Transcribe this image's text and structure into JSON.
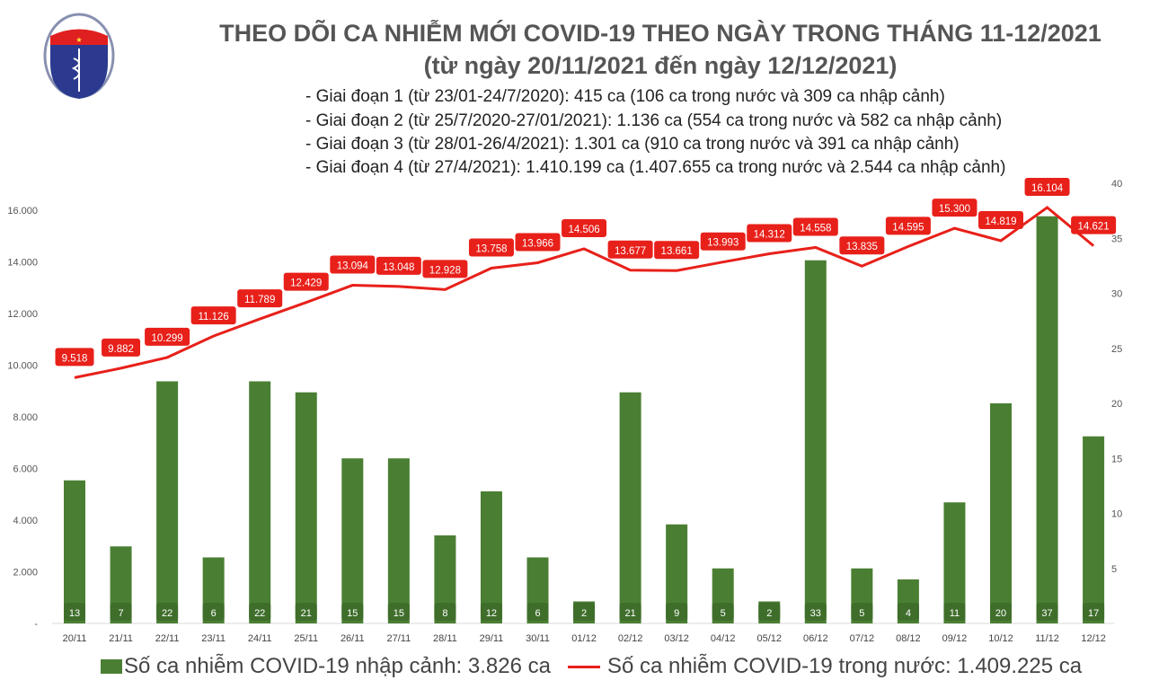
{
  "logo": {
    "text_top": "BỘ Y TẾ",
    "text_bottom": "MINISTRY OF HEALTH"
  },
  "header": {
    "title": "THEO DÕI CA NHIỄM MỚI COVID-19 THEO NGÀY TRONG THÁNG 11-12/2021",
    "subtitle": "(từ ngày 20/11/2021 đến ngày 12/12/2021)",
    "phases": [
      "- Giai đoạn 1 (từ 23/01-24/7/2020): 415 ca (106 ca trong nước và 309 ca nhập cảnh)",
      "- Giai đoạn 2 (từ 25/7/2020-27/01/2021): 1.136 ca (554 ca trong nước và 582 ca nhập cảnh)",
      "- Giai đoạn 3 (từ 28/01-26/4/2021): 1.301 ca (910 ca trong nước và 391 ca nhập cảnh)",
      "- Giai đoạn 4 (từ 27/4/2021): 1.410.199 ca (1.407.655 ca trong nước và 2.544 ca nhập cảnh)"
    ]
  },
  "chart_data": {
    "type": "bar+line",
    "categories": [
      "20/11",
      "21/11",
      "22/11",
      "23/11",
      "24/11",
      "25/11",
      "26/11",
      "27/11",
      "28/11",
      "29/11",
      "30/11",
      "01/12",
      "02/12",
      "03/12",
      "04/12",
      "05/12",
      "06/12",
      "07/12",
      "08/12",
      "09/12",
      "10/12",
      "11/12",
      "12/12"
    ],
    "series": [
      {
        "name": "Số ca nhiễm COVID-19 nhập cảnh: 3.826 ca",
        "type": "bar",
        "axis": "right",
        "color": "#4a7f33",
        "values": [
          13,
          7,
          22,
          6,
          22,
          21,
          15,
          15,
          8,
          12,
          6,
          2,
          21,
          9,
          5,
          2,
          33,
          5,
          4,
          11,
          20,
          37,
          17
        ]
      },
      {
        "name": "Số ca nhiễm COVID-19 trong nước: 1.409.225 ca",
        "type": "line",
        "axis": "left",
        "color": "#e8201a",
        "values": [
          9518,
          9882,
          10299,
          11126,
          11789,
          12429,
          13094,
          13048,
          12928,
          13758,
          13966,
          14506,
          13677,
          13661,
          13993,
          14312,
          14558,
          13835,
          14595,
          15300,
          14819,
          16104,
          14621
        ],
        "labels": [
          "9.518",
          "9.882",
          "10.299",
          "11.126",
          "11.789",
          "12.429",
          "13.094",
          "13.048",
          "12.928",
          "13.758",
          "13.966",
          "14.506",
          "13.677",
          "13.661",
          "13.993",
          "14.312",
          "14.558",
          "13.835",
          "14.595",
          "15.300",
          "14.819",
          "16.104",
          "14.621"
        ]
      }
    ],
    "left_axis": {
      "range": [
        0,
        16000
      ],
      "ticks": [
        "-",
        "2.000",
        "4.000",
        "6.000",
        "8.000",
        "10.000",
        "12.000",
        "14.000",
        "16.000"
      ]
    },
    "right_axis": {
      "range": [
        0,
        40
      ],
      "ticks": [
        "5",
        "10",
        "15",
        "20",
        "25",
        "30",
        "35",
        "40"
      ]
    },
    "grid": false,
    "legend": "bottom"
  }
}
